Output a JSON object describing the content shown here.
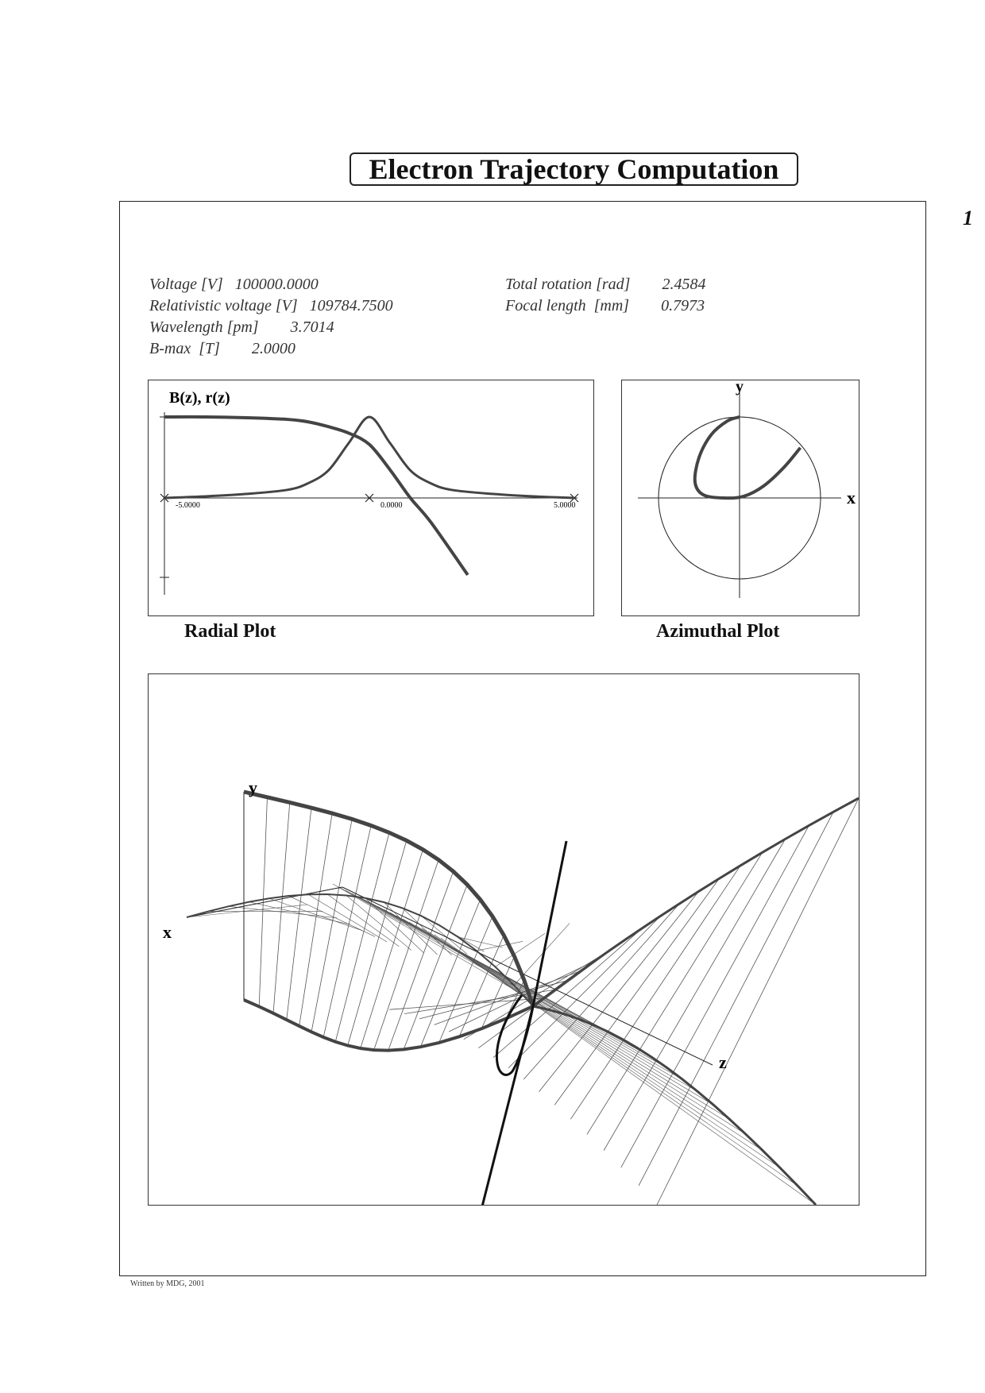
{
  "title": "Electron Trajectory Computation",
  "page_number": "1",
  "parameters": {
    "voltage": {
      "label": "Voltage [V]",
      "value": "100000.0000"
    },
    "relativistic_voltage": {
      "label": "Relativistic voltage [V]",
      "value": "109784.7500"
    },
    "wavelength": {
      "label": "Wavelength [pm]",
      "value": "3.7014"
    },
    "bmax": {
      "label": "B-max  [T]",
      "value": "2.0000"
    },
    "total_rotation": {
      "label": "Total rotation [rad]",
      "value": "2.4584"
    },
    "focal_length": {
      "label": "Focal length  [mm]",
      "value": "0.7973"
    }
  },
  "captions": {
    "radial": "Radial Plot",
    "azimuthal": "Azimuthal Plot"
  },
  "footer": "Written by MDG, 2001",
  "colors": {
    "curve": "#444444",
    "frame": "#222222",
    "mesh": "#555555"
  },
  "chart_data": [
    {
      "type": "line",
      "name": "radial",
      "title": "B(z), r(z)",
      "x_ticks": [
        "-5.0000",
        "0.0000",
        "5.0000"
      ],
      "xlim": [
        -5,
        5
      ],
      "series": [
        {
          "name": "B(z)",
          "x": [
            -5,
            -4,
            -3,
            -2,
            -1.5,
            -1,
            -0.5,
            0,
            0.5,
            1,
            1.5,
            2,
            3,
            4,
            5
          ],
          "y": [
            0.0,
            0.02,
            0.05,
            0.1,
            0.18,
            0.34,
            0.68,
            1.0,
            0.68,
            0.34,
            0.18,
            0.1,
            0.05,
            0.02,
            0.0
          ]
        },
        {
          "name": "r(z)",
          "x": [
            -5,
            -4,
            -3,
            -2,
            -1.5,
            -1,
            -0.5,
            0,
            0.5,
            1,
            1.5,
            2.4
          ],
          "y": [
            1.0,
            1.0,
            0.99,
            0.97,
            0.94,
            0.88,
            0.8,
            0.66,
            0.35,
            0.0,
            -0.3,
            -0.95
          ]
        }
      ]
    },
    {
      "type": "line",
      "name": "azimuthal",
      "xlabel": "x",
      "ylabel": "y",
      "series": [
        {
          "name": "trajectory",
          "x": [
            0.0,
            -0.15,
            -0.35,
            -0.5,
            -0.55,
            -0.45,
            -0.2,
            0.05,
            0.3,
            0.55,
            0.75
          ],
          "y": [
            1.0,
            0.95,
            0.78,
            0.5,
            0.2,
            0.04,
            0.0,
            0.02,
            0.15,
            0.38,
            0.62
          ]
        }
      ]
    },
    {
      "type": "line",
      "name": "perspective",
      "axis_labels": {
        "x": "x",
        "y": "y",
        "z": "z"
      }
    }
  ]
}
